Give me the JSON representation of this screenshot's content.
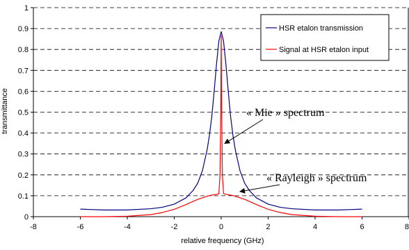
{
  "chart_data": {
    "type": "line",
    "title": "",
    "xlabel": "relative frequency (GHz)",
    "ylabel": "transmittance",
    "xlim": [
      -8,
      8
    ],
    "ylim": [
      0,
      1
    ],
    "x_ticks": [
      "-8",
      "-6",
      "-4",
      "-2",
      "0",
      "2",
      "4",
      "6",
      "8"
    ],
    "y_ticks": [
      "0",
      "0.1",
      "0.2",
      "0.3",
      "0.4",
      "0.5",
      "0.6",
      "0.7",
      "0.8",
      "0.9",
      "1"
    ],
    "grid": "horizontal dashed",
    "legend_position": "top-right",
    "series": [
      {
        "name": "HSR etalon transmission",
        "color": "#000080",
        "x": [
          -6,
          -5,
          -4,
          -3,
          -2.5,
          -2,
          -1.5,
          -1.2,
          -1,
          -0.8,
          -0.6,
          -0.5,
          -0.4,
          -0.3,
          -0.2,
          -0.1,
          0,
          0.1,
          0.2,
          0.3,
          0.4,
          0.5,
          0.6,
          0.8,
          1,
          1.2,
          1.5,
          2,
          2.5,
          3,
          4,
          5,
          6
        ],
        "y": [
          0.036,
          0.032,
          0.032,
          0.038,
          0.045,
          0.06,
          0.09,
          0.125,
          0.16,
          0.22,
          0.32,
          0.39,
          0.48,
          0.6,
          0.73,
          0.84,
          0.885,
          0.84,
          0.73,
          0.6,
          0.48,
          0.39,
          0.32,
          0.22,
          0.16,
          0.125,
          0.09,
          0.06,
          0.045,
          0.038,
          0.032,
          0.032,
          0.036
        ]
      },
      {
        "name": "Signal at HSR etalon input",
        "color": "#ff0000",
        "x": [
          -6,
          -5,
          -4,
          -3,
          -2.5,
          -2,
          -1.5,
          -1,
          -0.5,
          -0.2,
          -0.1,
          -0.05,
          -0.02,
          0,
          0.02,
          0.05,
          0.1,
          0.2,
          0.5,
          1,
          1.5,
          2,
          2.5,
          3,
          4,
          5,
          6
        ],
        "y": [
          0.0,
          0.0,
          0.002,
          0.01,
          0.02,
          0.035,
          0.058,
          0.083,
          0.101,
          0.107,
          0.11,
          0.2,
          0.5,
          0.865,
          0.5,
          0.2,
          0.11,
          0.107,
          0.101,
          0.083,
          0.058,
          0.035,
          0.02,
          0.01,
          0.002,
          0.0,
          0.0
        ]
      }
    ],
    "annotations": [
      {
        "text": "« Mie » spectrum",
        "arrow_to": [
          0.15,
          0.35
        ]
      },
      {
        "text": "« Rayleigh » spectrum",
        "arrow_to": [
          0.8,
          0.12
        ]
      }
    ]
  }
}
